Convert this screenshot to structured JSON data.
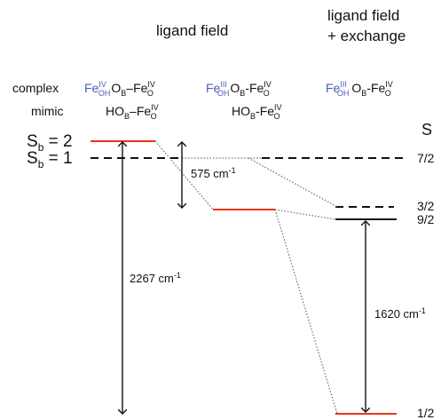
{
  "headers": {
    "ligand_field": "ligand field",
    "ligand_exchange_line1": "ligand field",
    "ligand_exchange_line2": "+ exchange"
  },
  "rows": {
    "complex_label": "complex",
    "mimic_label": "mimic"
  },
  "species": {
    "iv": "IV",
    "iii": "III",
    "oh": "OH",
    "o": "O",
    "b": "B",
    "fe": "Fe",
    "ho": "HO",
    "dash": "–",
    "hyphen": "-"
  },
  "states": {
    "s": "S",
    "sub_b": "b",
    "sb2_value": " = 2",
    "sb1_value": " = 1"
  },
  "spin_labels": {
    "header": "S",
    "s7_2": "7/2",
    "s3_2": "3/2",
    "s9_2": "9/2",
    "s1_2": "1/2"
  },
  "energies": {
    "gap_575": "575 cm",
    "gap_2267": "2267 cm",
    "gap_1620": "1620 cm",
    "exp": "-1"
  },
  "colors": {
    "level_red": "#e8361c",
    "fe_blue": "#4a5fb4",
    "dotted_gray": "#777777"
  }
}
